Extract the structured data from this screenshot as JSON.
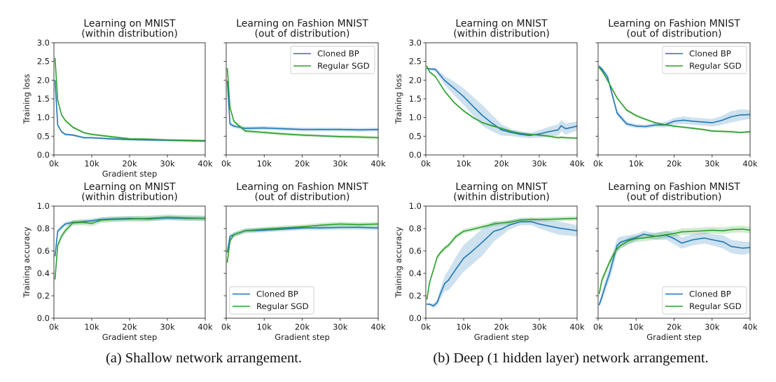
{
  "captions": {
    "a": "(a) Shallow network arrangement.",
    "b": "(b) Deep (1 hidden layer) network arrangement."
  },
  "chart_data": [
    {
      "type": "line",
      "group": "a",
      "title": [
        "Learning on MNIST",
        "(within distribution)"
      ],
      "xlabel": "Gradient step",
      "ylabel": "Training loss",
      "xlim": [
        0,
        40
      ],
      "ylim": [
        0,
        3
      ],
      "xticks": [
        0,
        10,
        20,
        30,
        40
      ],
      "xtick_labels": [
        "0k",
        "10k",
        "20k",
        "30k",
        "40k"
      ],
      "yticks": [
        0,
        0.5,
        1,
        1.5,
        2,
        2.5,
        3
      ],
      "ytick_labels": [
        "0.0",
        "0.5",
        "1.0",
        "1.5",
        "2.0",
        "2.5",
        "3.0"
      ],
      "legend": "none",
      "x": [
        0.3,
        1,
        2,
        3,
        5,
        8,
        10,
        15,
        20,
        25,
        30,
        35,
        40
      ],
      "series": [
        {
          "name": "Cloned BP",
          "color": "#1f77b4",
          "values": [
            1.99,
            0.8,
            0.62,
            0.55,
            0.53,
            0.46,
            0.46,
            0.43,
            0.41,
            0.4,
            0.39,
            0.38,
            0.37
          ],
          "std": 0.03
        },
        {
          "name": "Regular SGD",
          "color": "#2ca02c",
          "values": [
            2.58,
            1.46,
            1.08,
            0.92,
            0.74,
            0.59,
            0.55,
            0.49,
            0.43,
            0.42,
            0.4,
            0.39,
            0.38
          ],
          "std": 0.03
        }
      ]
    },
    {
      "type": "line",
      "group": "a",
      "title": [
        "Learning on Fashion MNIST",
        "(out of distribution)"
      ],
      "xlabel": "",
      "ylabel": "",
      "xlim": [
        0,
        40
      ],
      "ylim": [
        0,
        3
      ],
      "xticks": [
        0,
        10,
        20,
        30,
        40
      ],
      "xtick_labels": [
        "0k",
        "10k",
        "20k",
        "30k",
        "40k"
      ],
      "yticks": [
        0,
        0.5,
        1,
        1.5,
        2,
        2.5,
        3
      ],
      "ytick_labels": [],
      "legend": "upper-right",
      "x": [
        0.3,
        1,
        2,
        5,
        10,
        15,
        20,
        25,
        30,
        35,
        40
      ],
      "series": [
        {
          "name": "Cloned BP",
          "color": "#1f77b4",
          "values": [
            1.97,
            0.83,
            0.77,
            0.71,
            0.72,
            0.7,
            0.68,
            0.68,
            0.68,
            0.67,
            0.68
          ],
          "std": 0.05
        },
        {
          "name": "Regular SGD",
          "color": "#2ca02c",
          "values": [
            2.31,
            1.27,
            0.9,
            0.64,
            0.6,
            0.56,
            0.53,
            0.51,
            0.49,
            0.48,
            0.46
          ],
          "std": 0.04
        }
      ]
    },
    {
      "type": "line",
      "group": "b",
      "title": [
        "Learning on MNIST",
        "(within distribution)"
      ],
      "xlabel": "",
      "ylabel": "Training loss",
      "xlim": [
        0,
        40
      ],
      "ylim": [
        0,
        3
      ],
      "xticks": [
        0,
        10,
        20,
        30,
        40
      ],
      "xtick_labels": [
        "0k",
        "10k",
        "20k",
        "30k",
        "40k"
      ],
      "yticks": [
        0,
        0.5,
        1,
        1.5,
        2,
        2.5,
        3
      ],
      "ytick_labels": [
        "0.0",
        "0.5",
        "1.0",
        "1.5",
        "2.0",
        "2.5",
        "3.0"
      ],
      "legend": "none",
      "x": [
        0.3,
        1,
        2.5,
        5,
        7.5,
        10,
        12.5,
        15,
        17.5,
        20,
        22.5,
        25,
        27.5,
        30,
        32.5,
        35,
        35.8,
        37,
        40
      ],
      "series": [
        {
          "name": "Cloned BP",
          "color": "#1f77b4",
          "values": [
            2.31,
            2.3,
            2.29,
            1.99,
            1.78,
            1.56,
            1.3,
            1.05,
            0.85,
            0.67,
            0.6,
            0.55,
            0.52,
            0.56,
            0.62,
            0.67,
            0.78,
            0.7,
            0.77
          ],
          "std": [
            0.02,
            0.03,
            0.05,
            0.12,
            0.18,
            0.22,
            0.25,
            0.28,
            0.22,
            0.15,
            0.1,
            0.08,
            0.07,
            0.1,
            0.13,
            0.15,
            0.15,
            0.15,
            0.12
          ]
        },
        {
          "name": "Regular SGD",
          "color": "#2ca02c",
          "values": [
            2.37,
            2.22,
            2.1,
            1.7,
            1.4,
            1.18,
            1.0,
            0.86,
            0.78,
            0.71,
            0.63,
            0.58,
            0.55,
            0.53,
            0.5,
            0.46,
            0.47,
            0.46,
            0.45
          ],
          "std": 0.03
        }
      ]
    },
    {
      "type": "line",
      "group": "b",
      "title": [
        "Learning on Fashion MNIST",
        "(out of distribution)"
      ],
      "xlabel": "",
      "ylabel": "",
      "xlim": [
        0,
        40
      ],
      "ylim": [
        0,
        3
      ],
      "xticks": [
        0,
        10,
        20,
        30,
        40
      ],
      "xtick_labels": [
        "0k",
        "10k",
        "20k",
        "30k",
        "40k"
      ],
      "yticks": [
        0,
        0.5,
        1,
        1.5,
        2,
        2.5,
        3
      ],
      "ytick_labels": [],
      "legend": "upper-right",
      "x": [
        0.3,
        1,
        2.5,
        5,
        7.5,
        10,
        12.5,
        15,
        17.5,
        20,
        22.5,
        25,
        27.5,
        30,
        32.5,
        35,
        37.5,
        40
      ],
      "series": [
        {
          "name": "Cloned BP",
          "color": "#1f77b4",
          "values": [
            2.37,
            2.3,
            2.08,
            1.12,
            0.83,
            0.77,
            0.76,
            0.8,
            0.8,
            0.9,
            0.93,
            0.9,
            0.88,
            0.86,
            0.92,
            1.02,
            1.07,
            1.08
          ],
          "std": [
            0.02,
            0.05,
            0.08,
            0.08,
            0.06,
            0.05,
            0.05,
            0.06,
            0.07,
            0.09,
            0.1,
            0.1,
            0.1,
            0.1,
            0.12,
            0.15,
            0.15,
            0.12
          ]
        },
        {
          "name": "Regular SGD",
          "color": "#2ca02c",
          "values": [
            2.33,
            2.25,
            1.99,
            1.52,
            1.2,
            1.05,
            0.95,
            0.86,
            0.81,
            0.77,
            0.74,
            0.71,
            0.68,
            0.64,
            0.63,
            0.62,
            0.6,
            0.62
          ],
          "std": 0.03
        }
      ]
    },
    {
      "type": "line",
      "group": "a",
      "title": [
        "Learning on MNIST",
        "(within distribution)"
      ],
      "xlabel": "Gradient step",
      "ylabel": "Training accuracy",
      "xlim": [
        0,
        40
      ],
      "ylim": [
        0,
        1
      ],
      "xticks": [
        0,
        10,
        20,
        30,
        40
      ],
      "xtick_labels": [
        "0k",
        "10k",
        "20k",
        "30k",
        "40k"
      ],
      "yticks": [
        0,
        0.2,
        0.4,
        0.6,
        0.8,
        1.0
      ],
      "ytick_labels": [
        "0.0",
        "0.2",
        "0.4",
        "0.6",
        "0.8",
        "1.0"
      ],
      "legend": "none",
      "x": [
        0.3,
        1,
        2,
        3,
        5,
        7.5,
        10,
        12.5,
        15,
        20,
        25,
        30,
        35,
        40
      ],
      "series": [
        {
          "name": "Cloned BP",
          "color": "#1f77b4",
          "values": [
            0.556,
            0.775,
            0.81,
            0.84,
            0.855,
            0.86,
            0.87,
            0.88,
            0.885,
            0.89,
            0.885,
            0.895,
            0.89,
            0.89
          ],
          "std": 0.02
        },
        {
          "name": "Regular SGD",
          "color": "#2ca02c",
          "values": [
            0.35,
            0.65,
            0.73,
            0.78,
            0.85,
            0.855,
            0.845,
            0.875,
            0.88,
            0.885,
            0.89,
            0.9,
            0.895,
            0.89
          ],
          "std": 0.025
        }
      ]
    },
    {
      "type": "line",
      "group": "a",
      "title": [
        "Learning on Fashion MNIST",
        "(out of distribution)"
      ],
      "xlabel": "Gradient step",
      "ylabel": "",
      "xlim": [
        0,
        40
      ],
      "ylim": [
        0,
        1
      ],
      "xticks": [
        0,
        10,
        20,
        30,
        40
      ],
      "xtick_labels": [
        "0k",
        "10k",
        "20k",
        "30k",
        "40k"
      ],
      "yticks": [
        0,
        0.2,
        0.4,
        0.6,
        0.8,
        1.0
      ],
      "ytick_labels": [],
      "legend": "lower-left",
      "x": [
        0.3,
        1,
        2,
        5,
        10,
        15,
        20,
        25,
        30,
        35,
        40
      ],
      "series": [
        {
          "name": "Cloned BP",
          "color": "#1f77b4",
          "values": [
            0.59,
            0.73,
            0.745,
            0.78,
            0.785,
            0.795,
            0.805,
            0.805,
            0.81,
            0.81,
            0.805
          ],
          "std": 0.02
        },
        {
          "name": "Regular SGD",
          "color": "#2ca02c",
          "values": [
            0.5,
            0.69,
            0.745,
            0.78,
            0.795,
            0.805,
            0.815,
            0.83,
            0.84,
            0.835,
            0.84
          ],
          "std": 0.02
        }
      ]
    },
    {
      "type": "line",
      "group": "b",
      "title": [
        "Learning on MNIST",
        "(within distribution)"
      ],
      "xlabel": "Gradient step",
      "ylabel": "Training accuracy",
      "xlim": [
        0,
        40
      ],
      "ylim": [
        0,
        1
      ],
      "xticks": [
        0,
        10,
        20,
        30,
        40
      ],
      "xtick_labels": [
        "0k",
        "10k",
        "20k",
        "30k",
        "40k"
      ],
      "yticks": [
        0,
        0.2,
        0.4,
        0.6,
        0.8,
        1.0
      ],
      "ytick_labels": [
        "0.0",
        "0.2",
        "0.4",
        "0.6",
        "0.8",
        "1.0"
      ],
      "legend": "none",
      "x": [
        0.3,
        1,
        2,
        3,
        4,
        5,
        6,
        8,
        10,
        12,
        15,
        18,
        20,
        22,
        25,
        28,
        30,
        35,
        40
      ],
      "series": [
        {
          "name": "Cloned BP",
          "color": "#1f77b4",
          "values": [
            0.125,
            0.125,
            0.11,
            0.14,
            0.23,
            0.31,
            0.34,
            0.44,
            0.535,
            0.59,
            0.68,
            0.775,
            0.795,
            0.83,
            0.86,
            0.86,
            0.84,
            0.805,
            0.78
          ],
          "std": [
            0.01,
            0.01,
            0.02,
            0.03,
            0.05,
            0.07,
            0.09,
            0.11,
            0.12,
            0.12,
            0.12,
            0.09,
            0.06,
            0.04,
            0.03,
            0.03,
            0.04,
            0.06,
            0.05
          ]
        },
        {
          "name": "Regular SGD",
          "color": "#2ca02c",
          "values": [
            0.17,
            0.32,
            0.43,
            0.545,
            0.59,
            0.625,
            0.65,
            0.73,
            0.775,
            0.79,
            0.815,
            0.84,
            0.85,
            0.855,
            0.875,
            0.88,
            0.88,
            0.885,
            0.89
          ],
          "std": 0.02
        }
      ]
    },
    {
      "type": "line",
      "group": "b",
      "title": [
        "Learning on Fashion MNIST",
        "(out of distribution)"
      ],
      "xlabel": "Gradient step",
      "ylabel": "",
      "xlim": [
        0,
        40
      ],
      "ylim": [
        0,
        1
      ],
      "xticks": [
        0,
        10,
        20,
        30,
        40
      ],
      "xtick_labels": [
        "0k",
        "10k",
        "20k",
        "30k",
        "40k"
      ],
      "yticks": [
        0,
        0.2,
        0.4,
        0.6,
        0.8,
        1.0
      ],
      "ytick_labels": [],
      "legend": "lower-right",
      "x": [
        0.3,
        1,
        2,
        3,
        4,
        5,
        6,
        8,
        10,
        12,
        15,
        18,
        20,
        22,
        25,
        28,
        30,
        33,
        35,
        38,
        40
      ],
      "series": [
        {
          "name": "Cloned BP",
          "color": "#1f77b4",
          "values": [
            0.12,
            0.19,
            0.3,
            0.4,
            0.525,
            0.65,
            0.68,
            0.7,
            0.72,
            0.75,
            0.73,
            0.74,
            0.71,
            0.67,
            0.7,
            0.715,
            0.7,
            0.68,
            0.64,
            0.625,
            0.63
          ],
          "std": [
            0.02,
            0.04,
            0.05,
            0.06,
            0.07,
            0.06,
            0.05,
            0.04,
            0.03,
            0.03,
            0.03,
            0.04,
            0.05,
            0.05,
            0.05,
            0.05,
            0.05,
            0.06,
            0.06,
            0.06,
            0.05
          ]
        },
        {
          "name": "Regular SGD",
          "color": "#2ca02c",
          "values": [
            0.22,
            0.34,
            0.42,
            0.5,
            0.565,
            0.62,
            0.65,
            0.69,
            0.71,
            0.715,
            0.73,
            0.745,
            0.755,
            0.77,
            0.775,
            0.78,
            0.785,
            0.78,
            0.79,
            0.795,
            0.785
          ],
          "std": 0.03
        }
      ]
    }
  ]
}
